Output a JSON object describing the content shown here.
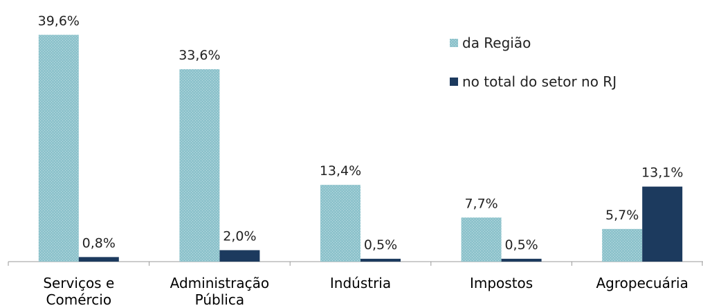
{
  "chart_data": {
    "type": "bar",
    "categories": [
      "Serviços e Comércio",
      "Administração Pública",
      "Indústria",
      "Impostos",
      "Agropecuária"
    ],
    "series": [
      {
        "name": "da Região",
        "color": "#8ec3cc",
        "pattern": true,
        "values": [
          39.6,
          33.6,
          13.4,
          7.7,
          5.7
        ],
        "value_labels": [
          "39,6%",
          "33,6%",
          "13,4%",
          "7,7%",
          "5,7%"
        ]
      },
      {
        "name": "no total do setor no RJ",
        "color": "#1c3a5e",
        "pattern": false,
        "values": [
          0.8,
          2.0,
          0.5,
          0.5,
          13.1
        ],
        "value_labels": [
          "0,8%",
          "2,0%",
          "0,5%",
          "0,5%",
          "13,1%"
        ]
      }
    ],
    "ylim": [
      0,
      40
    ],
    "grid": false,
    "legend": "top-right"
  }
}
